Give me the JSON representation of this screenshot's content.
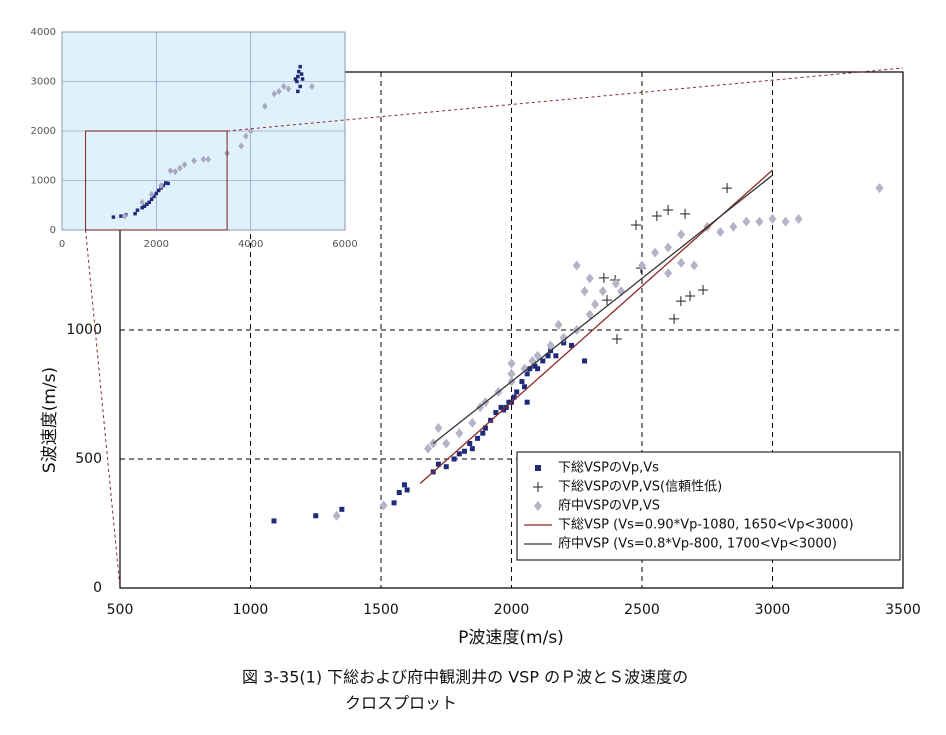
{
  "chart_data": [
    {
      "type": "scatter",
      "xlabel": "P波速度(m/s)",
      "ylabel": "S波速度(m/s)",
      "caption": [
        "図 3-35(1)  下総および府中観測井の VSP のＰ波とＳ波速度の",
        "クロスプロット"
      ],
      "xlim": [
        500,
        3500
      ],
      "ylim": [
        0,
        2000
      ],
      "xticks": [
        500,
        1000,
        1500,
        2000,
        2500,
        3000,
        3500
      ],
      "yticks": [
        0,
        500,
        1000
      ],
      "grid": true,
      "series": [
        {
          "name": "下総VSPのVp,Vs",
          "marker": "square",
          "color": "#1f2a78",
          "x": [
            1090,
            1250,
            1350,
            1550,
            1570,
            1590,
            1600,
            1700,
            1720,
            1750,
            1780,
            1800,
            1820,
            1840,
            1850,
            1870,
            1890,
            1900,
            1920,
            1940,
            1960,
            1970,
            1990,
            2010,
            2020,
            2040,
            2050,
            2060,
            2070,
            2090,
            2100,
            2120,
            2140,
            2150,
            2170,
            2200,
            2230,
            2280,
            2060,
            2000,
            1980
          ],
          "values": [
            260,
            280,
            305,
            330,
            370,
            400,
            380,
            450,
            480,
            470,
            500,
            520,
            530,
            560,
            540,
            580,
            600,
            620,
            650,
            680,
            700,
            690,
            720,
            740,
            760,
            800,
            780,
            830,
            850,
            860,
            850,
            880,
            900,
            920,
            900,
            950,
            940,
            880,
            720,
            720,
            700
          ]
        },
        {
          "name": "下総VSPのVP,VS(信頼性低)",
          "marker": "plus",
          "color": "#222222",
          "x": [
            2477,
            2496,
            2557,
            2600,
            2665,
            2623,
            2649,
            2684,
            2734,
            2826,
            2354,
            2397,
            2404,
            2366
          ],
          "values": [
            1407,
            1240,
            1442,
            1465,
            1450,
            1043,
            1112,
            1132,
            1155,
            1550,
            1202,
            1194,
            965,
            1116
          ]
        },
        {
          "name": "府中VSPのVP,VS",
          "marker": "diamond",
          "color": "#b4b4c8",
          "x": [
            1330,
            1510,
            1680,
            1700,
            1720,
            1750,
            1800,
            1850,
            1880,
            1900,
            1950,
            2000,
            2000,
            2050,
            2080,
            2100,
            2150,
            2200,
            2250,
            2300,
            2320,
            2350,
            2400,
            2300,
            2250,
            2420,
            2500,
            2550,
            2600,
            2650,
            2700,
            2750,
            2800,
            2850,
            2900,
            2950,
            3000,
            3050,
            3100,
            3410,
            2180,
            2280,
            2600,
            2650,
            2000
          ],
          "values": [
            280,
            320,
            540,
            560,
            620,
            560,
            600,
            640,
            700,
            720,
            760,
            800,
            830,
            850,
            880,
            900,
            940,
            970,
            1000,
            1060,
            1100,
            1150,
            1180,
            1200,
            1250,
            1150,
            1250,
            1300,
            1320,
            1370,
            1250,
            1400,
            1380,
            1400,
            1420,
            1420,
            1430,
            1420,
            1430,
            1550,
            1020,
            1150,
            1220,
            1260,
            870
          ]
        },
        {
          "name": "下総VSP (Vs=0.90*Vp-1080, 1650<Vp<3000)",
          "marker": "line",
          "color": "#8b2a2a",
          "x": [
            1650,
            3000
          ],
          "values": [
            405,
            1620
          ]
        },
        {
          "name": "府中VSP (Vs=0.8*Vp-800, 1700<Vp<3000)",
          "marker": "line",
          "color": "#333333",
          "x": [
            1700,
            3000
          ],
          "values": [
            560,
            1600
          ]
        }
      ]
    },
    {
      "type": "scatter",
      "xlim": [
        0,
        6000
      ],
      "ylim": [
        0,
        4000
      ],
      "xticks": [
        0,
        2000,
        4000,
        6000
      ],
      "yticks": [
        0,
        1000,
        2000,
        3000,
        4000
      ],
      "grid": true,
      "series": [
        {
          "marker": "square",
          "color": "#1f2a78",
          "x": [
            1090,
            1250,
            1350,
            1550,
            1600,
            1700,
            1750,
            1800,
            1850,
            1900,
            1950,
            2000,
            2050,
            2100,
            2150,
            2200,
            2250,
            4950,
            4980,
            5000,
            5000,
            5020,
            5050,
            5050,
            5080,
            5100
          ],
          "values": [
            260,
            280,
            305,
            330,
            400,
            450,
            480,
            520,
            560,
            620,
            680,
            740,
            800,
            850,
            900,
            950,
            940,
            3050,
            3000,
            3100,
            2800,
            3200,
            3300,
            2900,
            3150,
            3050
          ]
        },
        {
          "marker": "diamond",
          "color": "#a8a8c0",
          "x": [
            1330,
            1700,
            1900,
            2100,
            2300,
            2400,
            2500,
            2600,
            2800,
            3000,
            3100,
            3500,
            3800,
            3900,
            4000,
            4300,
            4500,
            4600,
            4700,
            4800,
            5300
          ],
          "values": [
            280,
            560,
            720,
            900,
            1200,
            1180,
            1250,
            1320,
            1400,
            1430,
            1430,
            1550,
            1700,
            1900,
            2000,
            2500,
            2750,
            2800,
            2900,
            2850,
            2900
          ]
        }
      ]
    }
  ]
}
